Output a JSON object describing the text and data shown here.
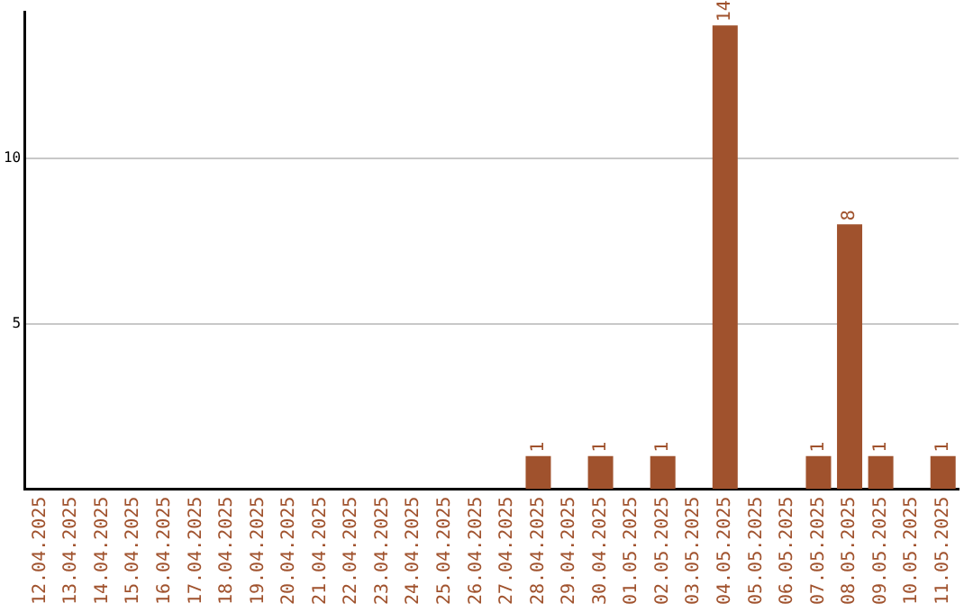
{
  "chart_data": {
    "type": "bar",
    "categories": [
      "12.04.2025",
      "13.04.2025",
      "14.04.2025",
      "15.04.2025",
      "16.04.2025",
      "17.04.2025",
      "18.04.2025",
      "19.04.2025",
      "20.04.2025",
      "21.04.2025",
      "22.04.2025",
      "23.04.2025",
      "24.04.2025",
      "25.04.2025",
      "26.04.2025",
      "27.04.2025",
      "28.04.2025",
      "29.04.2025",
      "30.04.2025",
      "01.05.2025",
      "02.05.2025",
      "03.05.2025",
      "04.05.2025",
      "05.05.2025",
      "06.05.2025",
      "07.05.2025",
      "08.05.2025",
      "09.05.2025",
      "10.05.2025",
      "11.05.2025"
    ],
    "values": [
      0,
      0,
      0,
      0,
      0,
      0,
      0,
      0,
      0,
      0,
      0,
      0,
      0,
      0,
      0,
      0,
      1,
      0,
      1,
      0,
      1,
      0,
      14,
      0,
      0,
      1,
      8,
      1,
      0,
      1
    ],
    "value_labels": [
      null,
      null,
      null,
      null,
      null,
      null,
      null,
      null,
      null,
      null,
      null,
      null,
      null,
      null,
      null,
      null,
      "1",
      null,
      "1",
      null,
      "1",
      null,
      "14",
      null,
      null,
      "1",
      "8",
      "1",
      null,
      "1"
    ],
    "color": "#a0522d",
    "ylim": [
      0,
      14.4
    ],
    "yticks": [
      5,
      10
    ],
    "grid": "y",
    "legend": false
  }
}
